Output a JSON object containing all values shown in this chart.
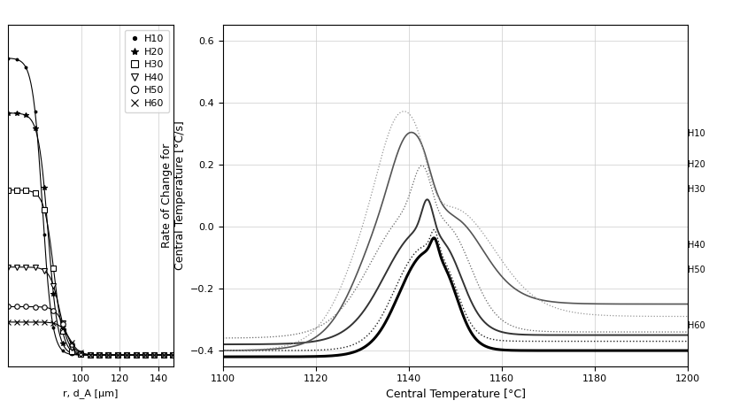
{
  "left_panel": {
    "xlabel": "r, d_A [μm]",
    "xlim": [
      62,
      148
    ],
    "ylim": [
      -0.05,
      1.5
    ],
    "xticks": [
      100,
      120,
      140
    ],
    "legend_labels": [
      "H10",
      "H20",
      "H30",
      "H40",
      "H50",
      "H60"
    ],
    "legend_markers": [
      ".",
      "*",
      "s",
      "v",
      "o",
      "x"
    ]
  },
  "right_panel": {
    "xlabel": "Central Temperature [°C]",
    "ylabel": "Rate of Change for\nCentral Temperature [°C/s]",
    "xlim": [
      1100,
      1200
    ],
    "ylim": [
      -0.45,
      0.65
    ],
    "xticks": [
      1100,
      1120,
      1140,
      1160,
      1180,
      1200
    ],
    "yticks": [
      -0.4,
      -0.2,
      0.0,
      0.2,
      0.4,
      0.6
    ]
  },
  "right_labels": {
    "names": [
      "H10",
      "H20",
      "H30",
      "H40",
      "H50",
      "H60"
    ],
    "y_positions": [
      0.3,
      0.2,
      0.12,
      -0.06,
      -0.14,
      -0.32
    ]
  },
  "background_color": "#ffffff",
  "grid_color": "#cccccc"
}
